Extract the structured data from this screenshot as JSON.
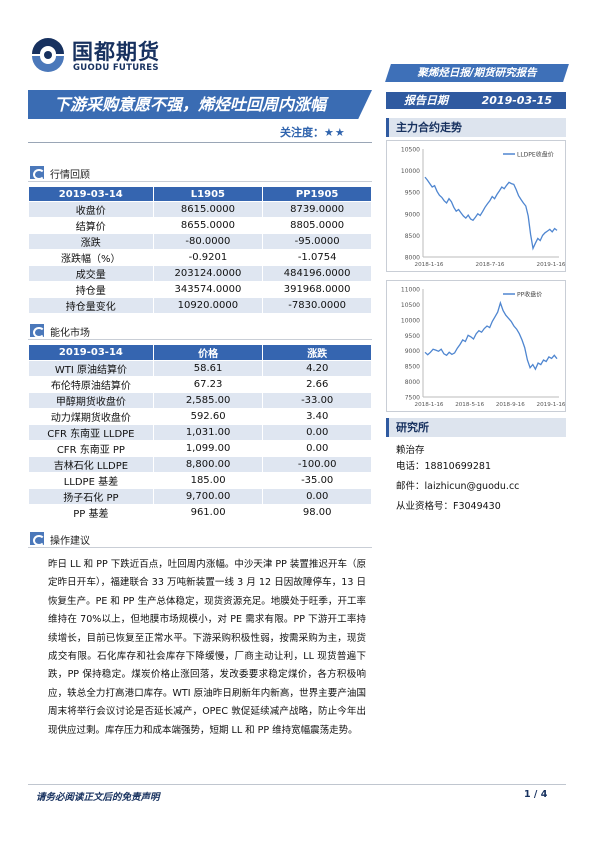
{
  "brand": {
    "name_cn": "国都期货",
    "name_en": "GUODU FUTURES",
    "color": "#17315f"
  },
  "report_type": "聚烯烃日报/期货研究报告",
  "title": "下游采购意愿不强，烯烃吐回周内涨幅",
  "attention": {
    "label": "关注度：",
    "stars": "★★"
  },
  "report_date": {
    "label": "报告日期",
    "value": "2019-03-15"
  },
  "main_contract_label": "主力合约走势",
  "research_label": "研究所",
  "author": {
    "name": "赖治存",
    "phone": "电话：18810699281",
    "email": "邮件：laizhicun@guodu.cc",
    "license": "从业资格号：F3049430"
  },
  "market_review": {
    "heading": "行情回顾",
    "columns": [
      "2019-03-14",
      "L1905",
      "PP1905"
    ],
    "rows": [
      [
        "收盘价",
        "8615.0000",
        "8739.0000"
      ],
      [
        "结算价",
        "8655.0000",
        "8805.0000"
      ],
      [
        "涨跌",
        "-80.0000",
        "-95.0000"
      ],
      [
        "涨跌幅（%）",
        "-0.9201",
        "-1.0754"
      ],
      [
        "成交量",
        "203124.0000",
        "484196.0000"
      ],
      [
        "持仓量",
        "343574.0000",
        "391968.0000"
      ],
      [
        "持仓量变化",
        "10920.0000",
        "-7830.0000"
      ]
    ]
  },
  "energy_market": {
    "heading": "能化市场",
    "columns": [
      "2019-03-14",
      "价格",
      "涨跌"
    ],
    "rows": [
      [
        "WTI 原油结算价",
        "58.61",
        "4.20"
      ],
      [
        "布伦特原油结算价",
        "67.23",
        "2.66"
      ],
      [
        "甲醇期货收盘价",
        "2,585.00",
        "-33.00"
      ],
      [
        "动力煤期货收盘价",
        "592.60",
        "3.40"
      ],
      [
        "CFR 东南亚 LLDPE",
        "1,031.00",
        "0.00"
      ],
      [
        "CFR 东南亚 PP",
        "1,099.00",
        "0.00"
      ],
      [
        "吉林石化 LLDPE",
        "8,800.00",
        "-100.00"
      ],
      [
        "LLDPE 基差",
        "185.00",
        "-35.00"
      ],
      [
        "扬子石化 PP",
        "9,700.00",
        "0.00"
      ],
      [
        "PP 基差",
        "961.00",
        "98.00"
      ]
    ]
  },
  "advice": {
    "heading": "操作建议",
    "text": "昨日 LL 和 PP 下跌近百点，吐回周内涨幅。中沙天津 PP 装置推迟开车（原定昨日开车），福建联合 33 万吨新装置一线 3 月 12 日因故障停车，13 日恢复生产。PE 和 PP 生产总体稳定，现货资源充足。地膜处于旺季，开工率维持在 70%以上，但地膜市场规模小，对 PE 需求有限。PP 下游开工率持续增长，目前已恢复至正常水平。下游采购积极性弱，按需采购为主，现货成交有限。石化库存和社会库存下降缓慢，厂商主动让利，LL 现货普遍下跌，PP 保持稳定。煤炭价格止涨回落，发改委要求稳定煤价，各方积极响应，轶总全力打高港口库存。WTI 原油昨日刷新年内新高，世界主要产油国周末将举行会议讨论是否延长减产，OPEC 敦促延续减产战略，防止今年出现供应过剩。库存压力和成本端强势，短期 LL 和 PP 维持宽幅震荡走势。"
  },
  "footer": {
    "disclaimer": "请务必阅读正文后的免责声明",
    "page": "1 / 4"
  },
  "chart_data": [
    {
      "type": "line",
      "title": "",
      "legend": "LLDPE收盘价",
      "legend_position": "top-right",
      "color": "#4f86d0",
      "x_ticks": [
        "2018-1-16",
        "2018-7-16",
        "2019-1-16"
      ],
      "ylim": [
        8000,
        10500
      ],
      "y_ticks": [
        8000,
        8500,
        9000,
        9500,
        10000,
        10500
      ],
      "values": [
        9850,
        9780,
        9700,
        9620,
        9650,
        9520,
        9430,
        9380,
        9300,
        9250,
        9350,
        9280,
        9150,
        9060,
        9100,
        9020,
        8950,
        8900,
        8970,
        8880,
        8850,
        8920,
        9000,
        8960,
        9050,
        9150,
        9230,
        9300,
        9400,
        9350,
        9450,
        9530,
        9620,
        9580,
        9660,
        9730,
        9700,
        9680,
        9560,
        9420,
        9330,
        9250,
        9180,
        8950,
        8520,
        8200,
        8320,
        8430,
        8380,
        8500,
        8560,
        8600,
        8640,
        8580,
        8660,
        8615
      ]
    },
    {
      "type": "line",
      "title": "",
      "legend": "PP收盘价",
      "legend_position": "top-right",
      "color": "#4f86d0",
      "x_ticks": [
        "2018-1-16",
        "2018-5-16",
        "2018-9-16",
        "2019-1-16"
      ],
      "ylim": [
        7500,
        11000
      ],
      "y_ticks": [
        7500,
        8000,
        8500,
        9000,
        9500,
        10000,
        10500,
        11000
      ],
      "values": [
        8950,
        8870,
        8950,
        9050,
        9020,
        8980,
        9050,
        8900,
        8850,
        8950,
        8880,
        8930,
        9080,
        9200,
        9350,
        9300,
        9500,
        9450,
        9380,
        9550,
        9650,
        9600,
        9720,
        9800,
        9750,
        9950,
        10100,
        10250,
        10550,
        10300,
        10150,
        10050,
        9950,
        9800,
        9700,
        9550,
        9350,
        9100,
        8700,
        8450,
        8550,
        8400,
        8600,
        8550,
        8700,
        8650,
        8800,
        8750,
        8850,
        8740
      ]
    }
  ]
}
